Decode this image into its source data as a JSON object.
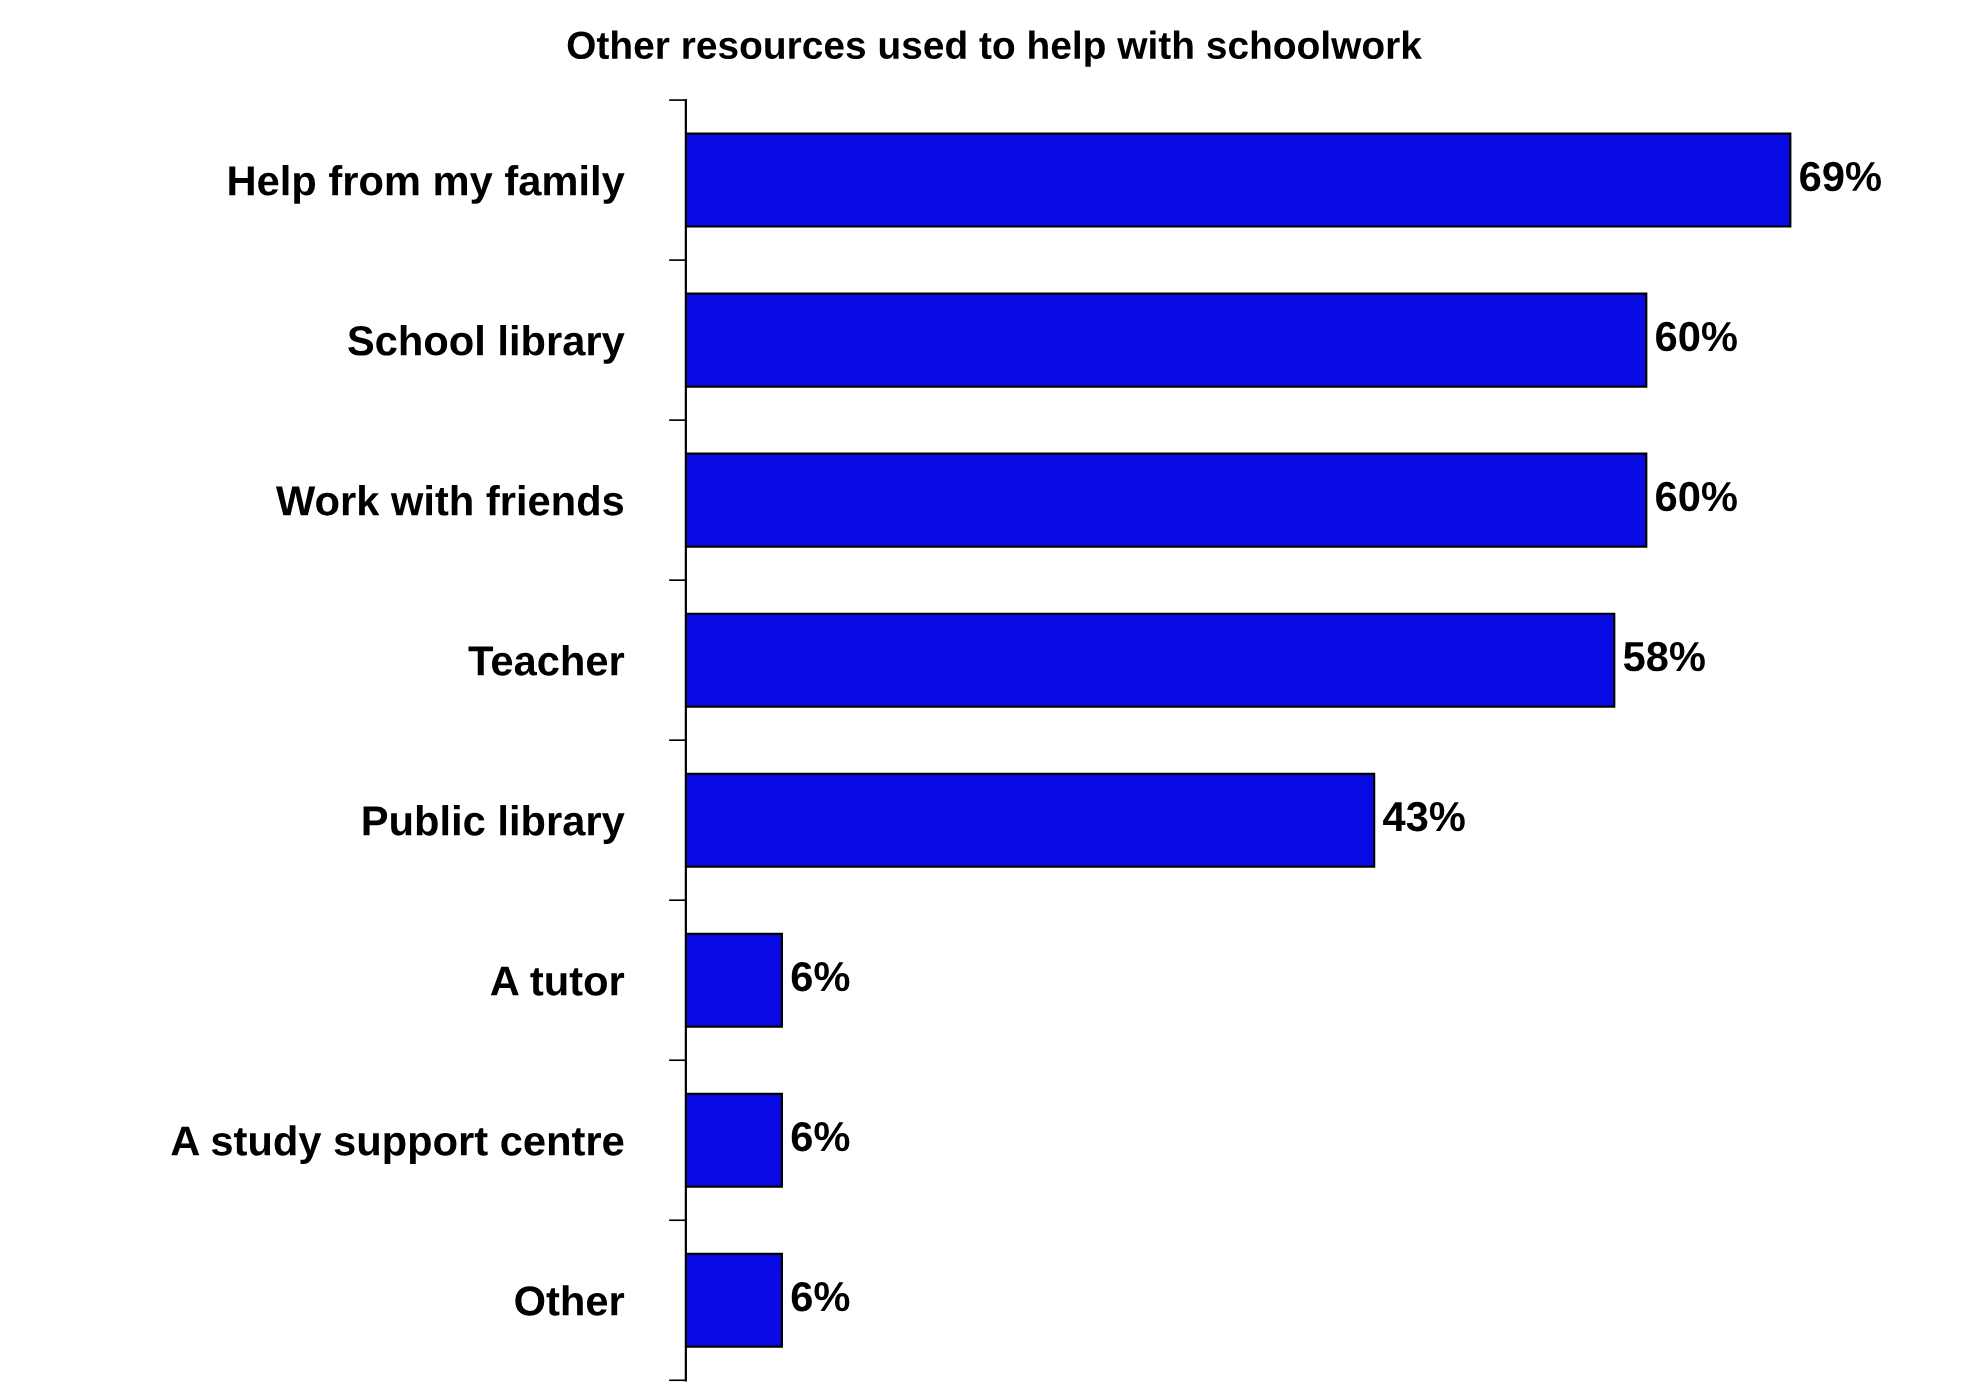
{
  "chart_data": {
    "type": "bar",
    "orientation": "horizontal",
    "title": "Other resources used to help with schoolwork",
    "categories": [
      "Help from my family",
      "School library",
      "Work with friends",
      "Teacher",
      "Public library",
      "A tutor",
      "A study support centre",
      "Other"
    ],
    "values": [
      69,
      60,
      60,
      58,
      43,
      6,
      6,
      6
    ],
    "value_labels": [
      "69%",
      "60%",
      "60%",
      "58%",
      "43%",
      "6%",
      "6%",
      "6%"
    ],
    "color": "#0a0ae6",
    "grid": false,
    "legend": false,
    "tick_labels": "y"
  }
}
